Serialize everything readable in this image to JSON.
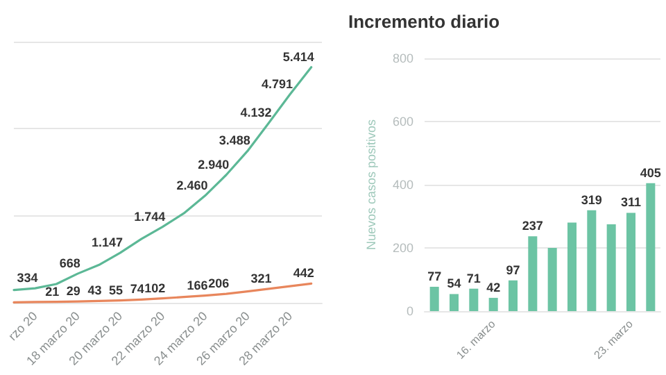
{
  "chart_data": [
    {
      "type": "line",
      "x": [
        "--03-15",
        "--03-16",
        "--03-17",
        "--03-18",
        "--03-19",
        "--03-20",
        "--03-21",
        "--03-22",
        "--03-23",
        "--03-24",
        "--03-25",
        "--03-26",
        "--03-27",
        "--03-28",
        "--03-29"
      ],
      "series": [
        {
          "color": "#5cb896",
          "values": [
            292,
            334,
            431,
            668,
            868,
            1147,
            1466,
            1744,
            2055,
            2460,
            2940,
            3488,
            4132,
            4791,
            5414
          ],
          "value_labels": [
            null,
            "334",
            null,
            "668",
            null,
            "1.147",
            null,
            "1.744",
            null,
            "2.460",
            "2.940",
            "3.488",
            "4.132",
            "4.791",
            "5.414"
          ]
        },
        {
          "color": "#e8865c",
          "values": [
            10,
            17,
            21,
            29,
            43,
            55,
            74,
            102,
            133,
            166,
            206,
            260,
            321,
            380,
            442
          ],
          "value_labels": [
            null,
            null,
            "21",
            "29",
            "43",
            "55",
            "74",
            "102",
            null,
            "166",
            "206",
            null,
            "321",
            null,
            "442"
          ]
        }
      ],
      "xlim": [
        "--03-15",
        "--03-29T12:00"
      ],
      "xticks": [
        {
          "value": "--03-16",
          "label": "rzo 20"
        },
        {
          "value": "--03-18",
          "label": "18 marzo 20"
        },
        {
          "value": "--03-20",
          "label": "20 marzo 20"
        },
        {
          "value": "--03-22",
          "label": "22 marzo 20"
        },
        {
          "value": "--03-24",
          "label": "24 marzo 20"
        },
        {
          "value": "--03-26",
          "label": "26 marzo 20"
        },
        {
          "value": "--03-28",
          "label": "28 marzo 20"
        }
      ],
      "ylim": [
        0,
        6000
      ],
      "yticks": [
        0,
        2000,
        4000,
        6000
      ],
      "grid": "y",
      "tick_labels": "x",
      "marker": "none",
      "line_style": "solid"
    },
    {
      "type": "bar",
      "title": "Incremento diario",
      "ylabel": "Nuevos casos positivos",
      "categories": [
        null,
        null,
        null,
        "16. marzo",
        null,
        null,
        null,
        null,
        null,
        null,
        "23. marzo",
        null
      ],
      "values": [
        77,
        54,
        71,
        42,
        97,
        237,
        200,
        280,
        319,
        275,
        311,
        405
      ],
      "value_labels": [
        "77",
        "54",
        "71",
        "42",
        "97",
        "237",
        null,
        null,
        "319",
        null,
        "311",
        "405"
      ],
      "color": "#6cc4a4",
      "ylim": [
        0,
        800
      ],
      "yticks": [
        0,
        200,
        400,
        600,
        800
      ],
      "grid": "y"
    }
  ]
}
